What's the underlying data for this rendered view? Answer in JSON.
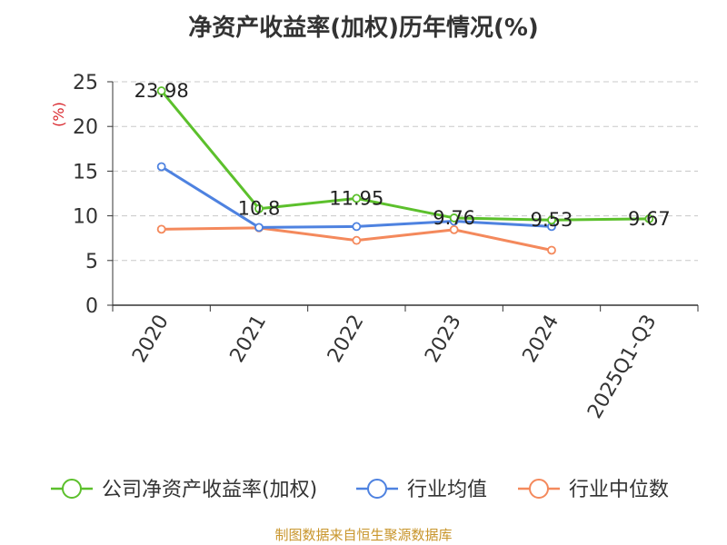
{
  "title": "净资产收益率(加权)历年情况(%)",
  "source": "制图数据来自恒生聚源数据库",
  "chart_data": {
    "type": "line",
    "ylabel": "(%)",
    "ylim": [
      0,
      25
    ],
    "yticks": [
      0,
      5,
      10,
      15,
      20,
      25
    ],
    "grid": true,
    "legend_position": "bottom",
    "categories": [
      "2020",
      "2021",
      "2022",
      "2023",
      "2024",
      "2025Q1-Q3"
    ],
    "series": [
      {
        "name": "公司净资产收益率(加权)",
        "color": "#5cc02c",
        "values": [
          23.98,
          10.8,
          11.95,
          9.76,
          9.53,
          9.67
        ],
        "value_labels": [
          "23.98",
          "10.8",
          "11.95",
          "9.76",
          "9.53",
          "9.67"
        ]
      },
      {
        "name": "行业均值",
        "color": "#4e82e0",
        "values": [
          15.5,
          8.7,
          8.8,
          9.4,
          8.8,
          null
        ]
      },
      {
        "name": "行业中位数",
        "color": "#f4895c",
        "values": [
          8.5,
          8.65,
          7.25,
          8.45,
          6.15,
          null
        ]
      }
    ]
  }
}
